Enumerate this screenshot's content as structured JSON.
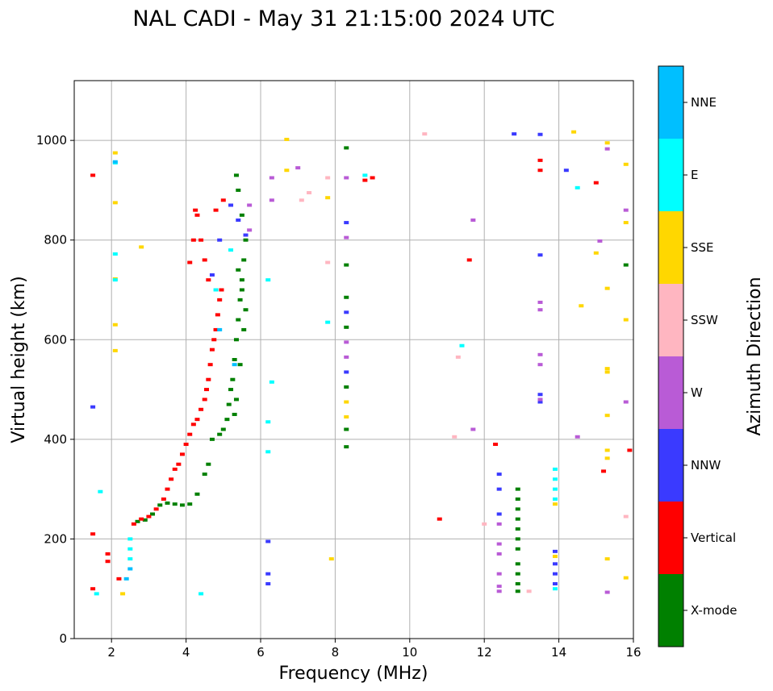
{
  "chart_data": {
    "type": "scatter",
    "title": "NAL CADI - May 31 21:15:00 2024 UTC",
    "xlabel": "Frequency (MHz)",
    "ylabel": "Virtual height (km)",
    "xlim": [
      1,
      16
    ],
    "ylim": [
      0,
      1120
    ],
    "xticks": [
      "2",
      "4",
      "6",
      "8",
      "10",
      "12",
      "14",
      "16"
    ],
    "yticks": [
      "0",
      "200",
      "400",
      "600",
      "800",
      "1000"
    ],
    "grid": true,
    "colorbar": {
      "title": "Azimuth Direction",
      "categories": [
        "X-mode",
        "Vertical",
        "NNW",
        "W",
        "SSW",
        "SSE",
        "E",
        "NNE"
      ],
      "colors": [
        "#008000",
        "#ff0000",
        "#3a3aff",
        "#b95bd6",
        "#ffb6c1",
        "#ffd700",
        "#00ffff",
        "#00bfff"
      ]
    },
    "series": [
      {
        "name": "X-mode",
        "points": [
          [
            2.7,
            235
          ],
          [
            2.9,
            238
          ],
          [
            3.1,
            250
          ],
          [
            3.3,
            268
          ],
          [
            3.5,
            272
          ],
          [
            3.7,
            270
          ],
          [
            3.9,
            268
          ],
          [
            4.1,
            270
          ],
          [
            4.3,
            290
          ],
          [
            4.5,
            330
          ],
          [
            4.6,
            350
          ],
          [
            4.7,
            400
          ],
          [
            4.9,
            410
          ],
          [
            5.0,
            420
          ],
          [
            5.1,
            440
          ],
          [
            5.15,
            470
          ],
          [
            5.2,
            500
          ],
          [
            5.25,
            520
          ],
          [
            5.3,
            560
          ],
          [
            5.35,
            600
          ],
          [
            5.4,
            640
          ],
          [
            5.45,
            680
          ],
          [
            5.5,
            720
          ],
          [
            5.55,
            760
          ],
          [
            5.6,
            800
          ],
          [
            5.5,
            850
          ],
          [
            5.4,
            900
          ],
          [
            5.35,
            930
          ],
          [
            5.3,
            450
          ],
          [
            5.35,
            480
          ],
          [
            5.45,
            550
          ],
          [
            5.55,
            620
          ],
          [
            5.6,
            660
          ],
          [
            5.5,
            700
          ],
          [
            5.4,
            740
          ],
          [
            8.3,
            985
          ],
          [
            8.3,
            750
          ],
          [
            8.3,
            685
          ],
          [
            8.3,
            625
          ],
          [
            8.3,
            505
          ],
          [
            8.3,
            420
          ],
          [
            8.3,
            385
          ],
          [
            12.9,
            300
          ],
          [
            12.9,
            280
          ],
          [
            12.9,
            260
          ],
          [
            12.9,
            240
          ],
          [
            12.9,
            220
          ],
          [
            12.9,
            200
          ],
          [
            12.9,
            180
          ],
          [
            12.9,
            150
          ],
          [
            12.9,
            130
          ],
          [
            12.9,
            110
          ],
          [
            12.9,
            95
          ],
          [
            15.8,
            750
          ]
        ]
      },
      {
        "name": "Vertical",
        "points": [
          [
            1.5,
            930
          ],
          [
            1.5,
            210
          ],
          [
            1.5,
            100
          ],
          [
            1.9,
            170
          ],
          [
            1.9,
            155
          ],
          [
            2.2,
            120
          ],
          [
            2.6,
            230
          ],
          [
            2.8,
            240
          ],
          [
            3.0,
            245
          ],
          [
            3.2,
            260
          ],
          [
            3.4,
            280
          ],
          [
            3.5,
            300
          ],
          [
            3.6,
            320
          ],
          [
            3.7,
            340
          ],
          [
            3.8,
            350
          ],
          [
            3.9,
            370
          ],
          [
            4.0,
            390
          ],
          [
            4.1,
            410
          ],
          [
            4.2,
            430
          ],
          [
            4.3,
            440
          ],
          [
            4.4,
            460
          ],
          [
            4.5,
            480
          ],
          [
            4.55,
            500
          ],
          [
            4.6,
            520
          ],
          [
            4.65,
            550
          ],
          [
            4.7,
            580
          ],
          [
            4.75,
            600
          ],
          [
            4.8,
            620
          ],
          [
            4.85,
            650
          ],
          [
            4.9,
            680
          ],
          [
            4.95,
            700
          ],
          [
            4.6,
            720
          ],
          [
            4.5,
            760
          ],
          [
            4.4,
            800
          ],
          [
            4.3,
            850
          ],
          [
            4.25,
            860
          ],
          [
            4.1,
            755
          ],
          [
            4.2,
            800
          ],
          [
            4.8,
            860
          ],
          [
            5.0,
            880
          ],
          [
            8.8,
            920
          ],
          [
            9.0,
            925
          ],
          [
            10.8,
            240
          ],
          [
            11.6,
            760
          ],
          [
            12.3,
            390
          ],
          [
            13.5,
            960
          ],
          [
            13.5,
            940
          ],
          [
            15.2,
            336
          ],
          [
            15.9,
            378
          ],
          [
            15.0,
            915
          ]
        ]
      },
      {
        "name": "NNW",
        "points": [
          [
            1.5,
            465
          ],
          [
            6.2,
            130
          ],
          [
            6.2,
            110
          ],
          [
            6.2,
            195
          ],
          [
            4.7,
            730
          ],
          [
            5.4,
            840
          ],
          [
            5.2,
            870
          ],
          [
            4.9,
            800
          ],
          [
            5.6,
            810
          ],
          [
            8.3,
            835
          ],
          [
            8.3,
            655
          ],
          [
            8.3,
            535
          ],
          [
            12.4,
            330
          ],
          [
            12.4,
            300
          ],
          [
            12.4,
            250
          ],
          [
            13.5,
            1012
          ],
          [
            13.5,
            770
          ],
          [
            13.5,
            490
          ],
          [
            13.5,
            475
          ],
          [
            13.9,
            175
          ],
          [
            13.9,
            150
          ],
          [
            13.9,
            130
          ],
          [
            13.9,
            110
          ],
          [
            14.2,
            940
          ],
          [
            12.8,
            1013
          ]
        ]
      },
      {
        "name": "W",
        "points": [
          [
            6.3,
            925
          ],
          [
            6.3,
            880
          ],
          [
            7.0,
            945
          ],
          [
            5.7,
            870
          ],
          [
            5.7,
            820
          ],
          [
            8.3,
            925
          ],
          [
            8.3,
            805
          ],
          [
            8.3,
            595
          ],
          [
            8.3,
            565
          ],
          [
            11.7,
            840
          ],
          [
            11.7,
            420
          ],
          [
            12.4,
            230
          ],
          [
            12.4,
            190
          ],
          [
            12.4,
            170
          ],
          [
            12.4,
            130
          ],
          [
            12.4,
            105
          ],
          [
            12.4,
            95
          ],
          [
            13.5,
            675
          ],
          [
            13.5,
            660
          ],
          [
            13.5,
            570
          ],
          [
            13.5,
            550
          ],
          [
            13.5,
            480
          ],
          [
            14.5,
            405
          ],
          [
            15.1,
            798
          ],
          [
            15.3,
            983
          ],
          [
            15.3,
            93
          ],
          [
            15.8,
            860
          ],
          [
            15.8,
            475
          ]
        ]
      },
      {
        "name": "SSW",
        "points": [
          [
            7.8,
            925
          ],
          [
            7.3,
            895
          ],
          [
            7.1,
            880
          ],
          [
            7.8,
            755
          ],
          [
            11.3,
            565
          ],
          [
            11.2,
            405
          ],
          [
            12.0,
            230
          ],
          [
            13.2,
            95
          ],
          [
            15.8,
            245
          ],
          [
            10.4,
            1013
          ]
        ]
      },
      {
        "name": "SSE",
        "points": [
          [
            2.1,
            975
          ],
          [
            2.1,
            875
          ],
          [
            2.1,
            630
          ],
          [
            2.1,
            578
          ],
          [
            2.1,
            722
          ],
          [
            2.8,
            786
          ],
          [
            2.3,
            90
          ],
          [
            6.7,
            1002
          ],
          [
            6.7,
            940
          ],
          [
            7.8,
            885
          ],
          [
            7.9,
            160
          ],
          [
            8.3,
            475
          ],
          [
            8.3,
            445
          ],
          [
            14.6,
            668
          ],
          [
            15.3,
            542
          ],
          [
            15.3,
            535
          ],
          [
            15.3,
            448
          ],
          [
            15.3,
            378
          ],
          [
            15.3,
            362
          ],
          [
            15.3,
            703
          ],
          [
            15.3,
            995
          ],
          [
            15.3,
            160
          ],
          [
            15.0,
            774
          ],
          [
            15.8,
            952
          ],
          [
            15.8,
            835
          ],
          [
            15.8,
            640
          ],
          [
            15.8,
            122
          ],
          [
            13.9,
            270
          ],
          [
            13.9,
            165
          ],
          [
            14.4,
            1017
          ]
        ]
      },
      {
        "name": "E",
        "points": [
          [
            2.1,
            955
          ],
          [
            2.1,
            772
          ],
          [
            2.1,
            720
          ],
          [
            1.7,
            295
          ],
          [
            2.5,
            200
          ],
          [
            2.5,
            180
          ],
          [
            2.5,
            160
          ],
          [
            1.6,
            90
          ],
          [
            4.4,
            90
          ],
          [
            4.8,
            700
          ],
          [
            5.2,
            780
          ],
          [
            6.2,
            720
          ],
          [
            6.3,
            515
          ],
          [
            6.2,
            435
          ],
          [
            6.2,
            375
          ],
          [
            7.8,
            635
          ],
          [
            11.4,
            588
          ],
          [
            13.9,
            340
          ],
          [
            13.9,
            320
          ],
          [
            13.9,
            300
          ],
          [
            13.9,
            280
          ],
          [
            13.9,
            100
          ],
          [
            14.5,
            905
          ],
          [
            8.8,
            930
          ]
        ]
      },
      {
        "name": "NNE",
        "points": [
          [
            2.1,
            957
          ],
          [
            2.5,
            140
          ],
          [
            2.4,
            120
          ],
          [
            4.9,
            620
          ],
          [
            5.3,
            550
          ]
        ]
      }
    ]
  }
}
